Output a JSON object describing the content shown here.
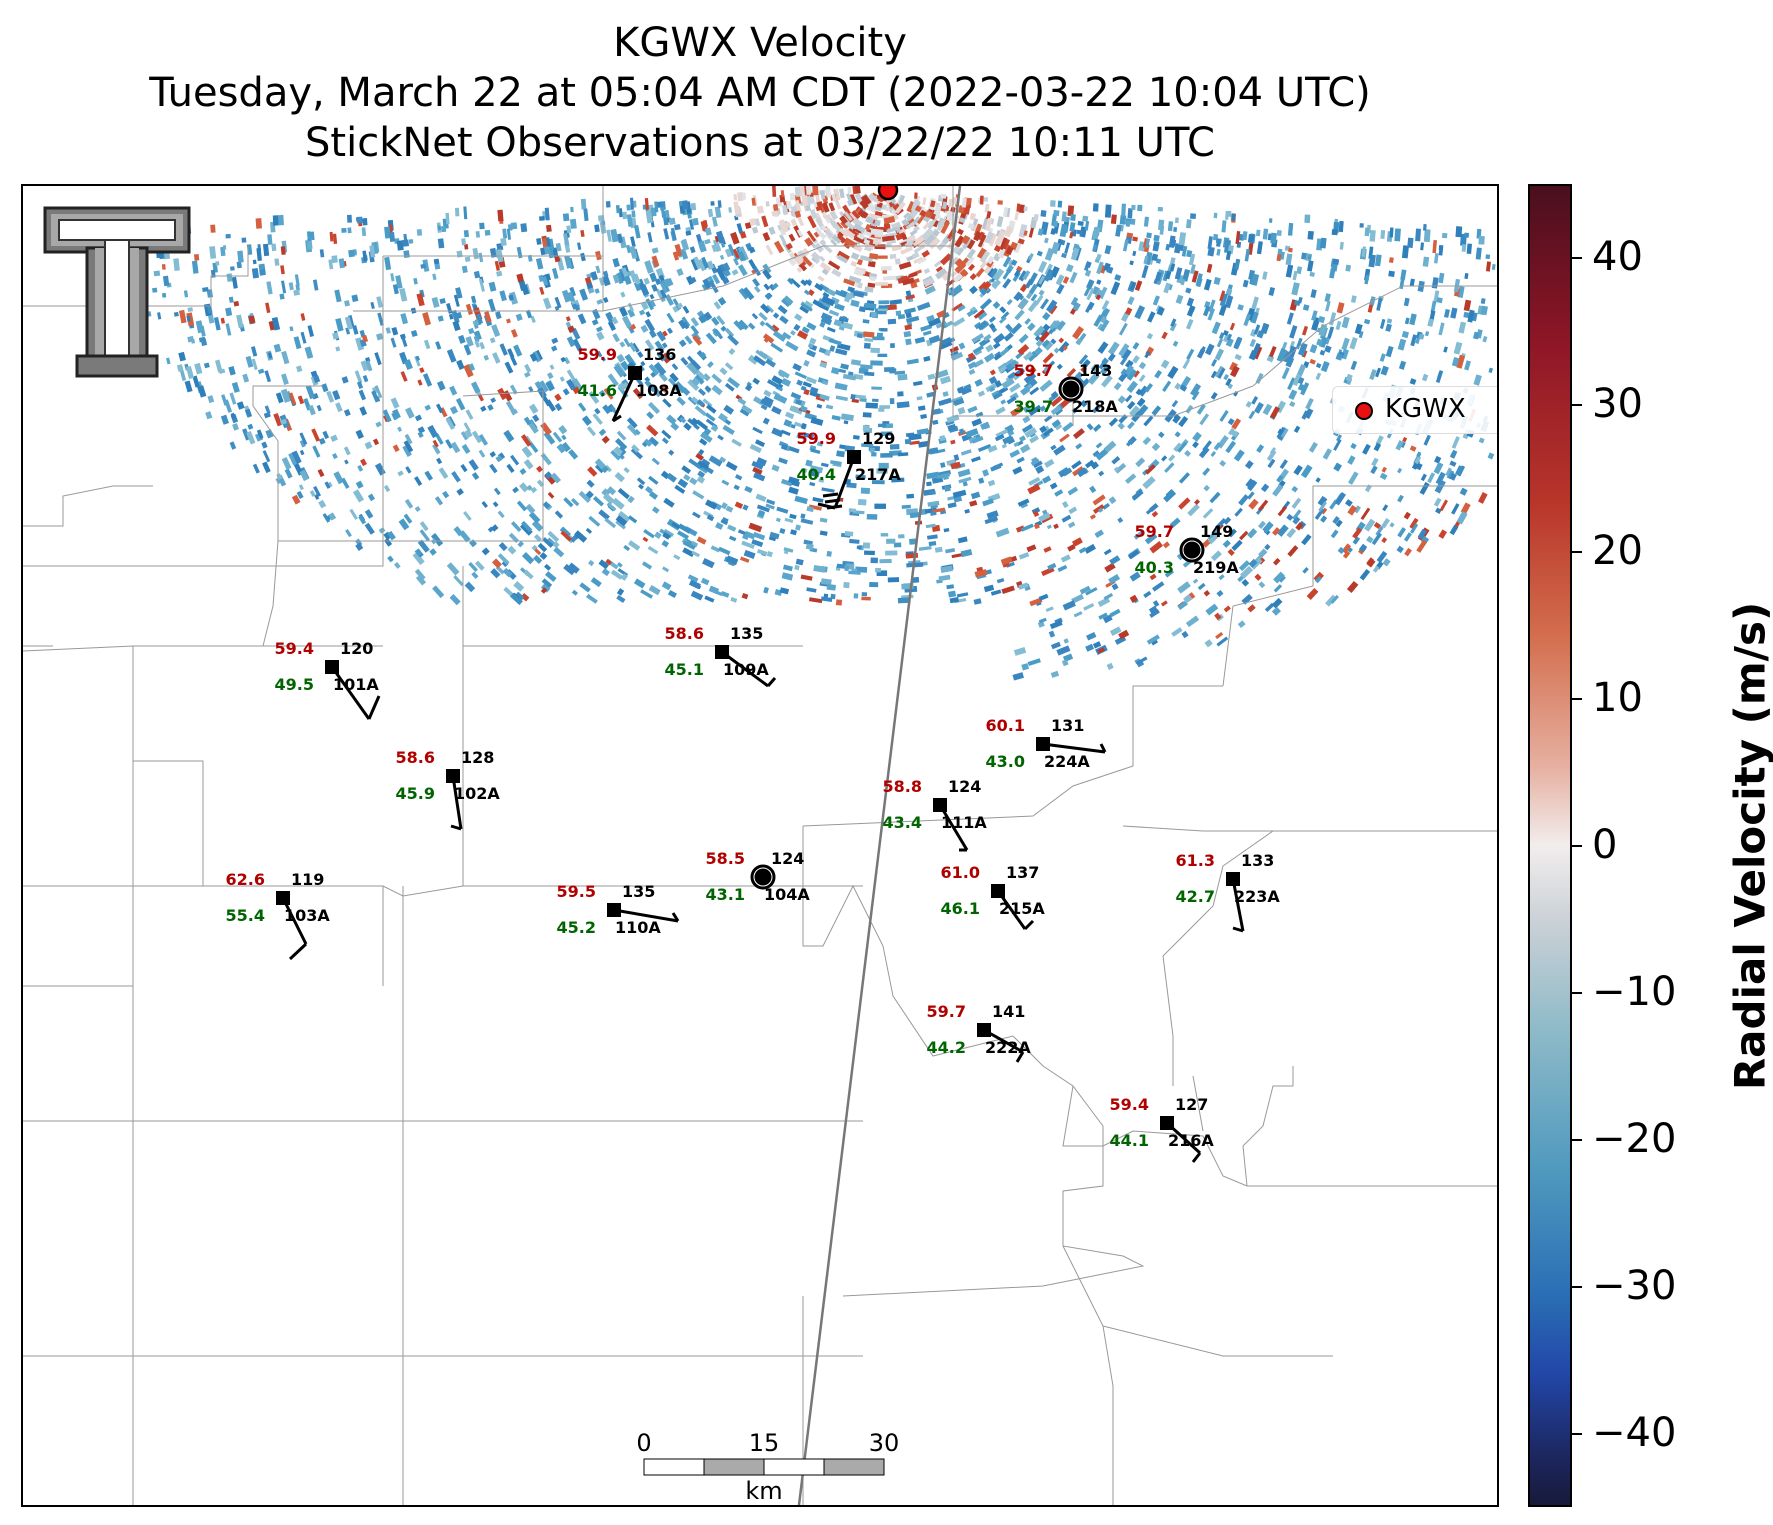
{
  "title": {
    "line1": "KGWX Velocity",
    "line2": "Tuesday, March 22 at 05:04 AM CDT (2022-03-22 10:04 UTC)",
    "line3": "StickNet Observations at 03/22/22 10:11 UTC"
  },
  "legend": {
    "label": "KGWX",
    "marker_color": "#e81010"
  },
  "colorbar": {
    "label": "Radial Velocity (m/s)",
    "range": [
      -45,
      45
    ],
    "ticks": [
      "40",
      "30",
      "20",
      "10",
      "0",
      "−10",
      "−20",
      "−30",
      "−40"
    ],
    "tick_values": [
      40,
      30,
      20,
      10,
      0,
      -10,
      -20,
      -30,
      -40
    ]
  },
  "scalebar": {
    "labels": [
      "0",
      "15",
      "30"
    ],
    "unit": "km"
  },
  "logo": {
    "name": "texas-tech-double-t-logo"
  },
  "stations": [
    {
      "id": "108A",
      "temp": "59.9",
      "dew": "41.6",
      "extra": "136",
      "marker": "square"
    },
    {
      "id": "218A",
      "temp": "59.7",
      "dew": "39.7",
      "extra": "143",
      "marker": "circle"
    },
    {
      "id": "217A",
      "temp": "59.9",
      "dew": "40.4",
      "extra": "129",
      "marker": "square"
    },
    {
      "id": "219A",
      "temp": "59.7",
      "dew": "40.3",
      "extra": "149",
      "marker": "circle"
    },
    {
      "id": "101A",
      "temp": "59.4",
      "dew": "49.5",
      "extra": "120",
      "marker": "square"
    },
    {
      "id": "109A",
      "temp": "58.6",
      "dew": "45.1",
      "extra": "135",
      "marker": "square"
    },
    {
      "id": "224A",
      "temp": "60.1",
      "dew": "43.0",
      "extra": "131",
      "marker": "square"
    },
    {
      "id": "102A",
      "temp": "58.6",
      "dew": "45.9",
      "extra": "128",
      "marker": "square"
    },
    {
      "id": "111A",
      "temp": "58.8",
      "dew": "43.4",
      "extra": "124",
      "marker": "square"
    },
    {
      "id": "104A",
      "temp": "58.5",
      "dew": "43.1",
      "extra": "124",
      "marker": "circle"
    },
    {
      "id": "215A",
      "temp": "61.0",
      "dew": "46.1",
      "extra": "137",
      "marker": "square"
    },
    {
      "id": "223A",
      "temp": "61.3",
      "dew": "42.7",
      "extra": "133",
      "marker": "square"
    },
    {
      "id": "103A",
      "temp": "62.6",
      "dew": "55.4",
      "extra": "119",
      "marker": "square"
    },
    {
      "id": "110A",
      "temp": "59.5",
      "dew": "45.2",
      "extra": "135",
      "marker": "square"
    },
    {
      "id": "222A",
      "temp": "59.7",
      "dew": "44.2",
      "extra": "141",
      "marker": "square"
    },
    {
      "id": "216A",
      "temp": "59.4",
      "dew": "44.1",
      "extra": "127",
      "marker": "square"
    }
  ],
  "colors": {
    "temp": "#b00000",
    "dew": "#006400",
    "radar_site": "#e81010"
  }
}
